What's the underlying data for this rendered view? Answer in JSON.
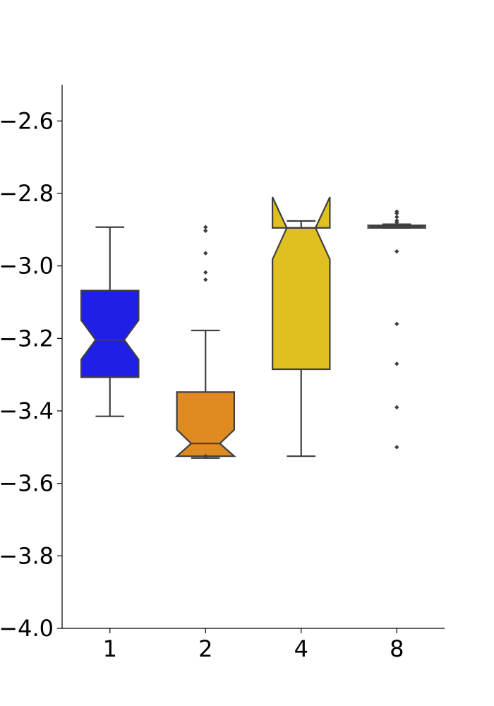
{
  "chart_data": {
    "type": "boxplot",
    "notched": true,
    "categories": [
      "1",
      "2",
      "4",
      "8"
    ],
    "y_ticks": [
      -4.0,
      -3.8,
      -3.6,
      -3.4,
      -3.2,
      -3.0,
      -2.8,
      -2.6
    ],
    "y_tick_labels": [
      "−4.0",
      "−3.8",
      "−3.6",
      "−3.4",
      "−3.2",
      "−3.0",
      "−2.8",
      "−2.6"
    ],
    "ylim": [
      -4.0,
      -2.5
    ],
    "grid": false,
    "boxes": [
      {
        "category": "1",
        "color": "#1f1fe6",
        "whisker_low": -3.415,
        "q1": -3.307,
        "median": -3.204,
        "q3": -3.068,
        "whisker_high": -2.893,
        "notch_low": -3.258,
        "notch_high": -3.15,
        "fliers": []
      },
      {
        "category": "2",
        "color": "#e08a22",
        "whisker_low": -3.53,
        "q1": -3.525,
        "median": -3.49,
        "q3": -3.348,
        "whisker_high": -3.178,
        "notch_low": -3.525,
        "notch_high": -3.452,
        "fliers": [
          -2.893,
          -2.903,
          -2.965,
          -3.018,
          -3.038,
          -3.525
        ]
      },
      {
        "category": "4",
        "color": "#e0c020",
        "whisker_low": -3.525,
        "q1": -3.285,
        "median": -2.895,
        "q3": -2.895,
        "whisker_high": -2.876,
        "notch_low": -2.982,
        "notch_high": -2.81,
        "fliers": []
      },
      {
        "category": "8",
        "color": "#6a6aa0",
        "whisker_low": -2.895,
        "q1": -2.895,
        "median": -2.892,
        "q3": -2.888,
        "whisker_high": -2.885,
        "notch_low": -2.894,
        "notch_high": -2.889,
        "fliers": [
          -2.85,
          -2.855,
          -2.865,
          -2.875,
          -2.88,
          -2.96,
          -3.16,
          -3.27,
          -3.39,
          -3.5
        ]
      }
    ]
  }
}
